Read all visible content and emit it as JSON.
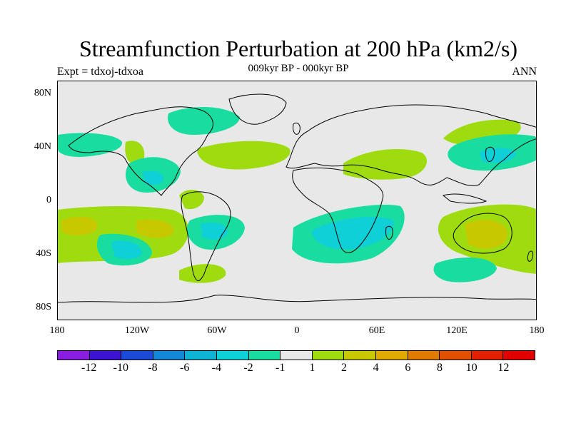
{
  "title": "Streamfunction Perturbation at 200 hPa (km2/s)",
  "subtitle": "009kyr BP - 000kyr BP",
  "left_label": "Expt = tdxoj-tdxoa",
  "right_label": "ANN",
  "lat_ticks": [
    "80N",
    "40N",
    "0",
    "40S",
    "80S"
  ],
  "lon_ticks": [
    "180",
    "120W",
    "60W",
    "0",
    "60E",
    "120E",
    "180"
  ],
  "legend": {
    "labels": [
      "-12",
      "-10",
      "-8",
      "-6",
      "-4",
      "-2",
      "-1",
      "1",
      "2",
      "4",
      "6",
      "8",
      "10",
      "12"
    ],
    "colors": [
      "#8a1ee0",
      "#3a14d0",
      "#1a4ad6",
      "#1488d8",
      "#0eb4d4",
      "#0ed0d6",
      "#18dca0",
      "#e8e8e8",
      "#9edc10",
      "#c8c800",
      "#e0aa00",
      "#e07a00",
      "#e05000",
      "#e02000",
      "#e00000"
    ]
  },
  "regions": [
    {
      "label": "2",
      "color": "#9edc10"
    },
    {
      "label": "-2",
      "color": "#18dca0"
    },
    {
      "label": "4",
      "color": "#c8c800"
    },
    {
      "label": "-4",
      "color": "#0ed0d6"
    }
  ]
}
